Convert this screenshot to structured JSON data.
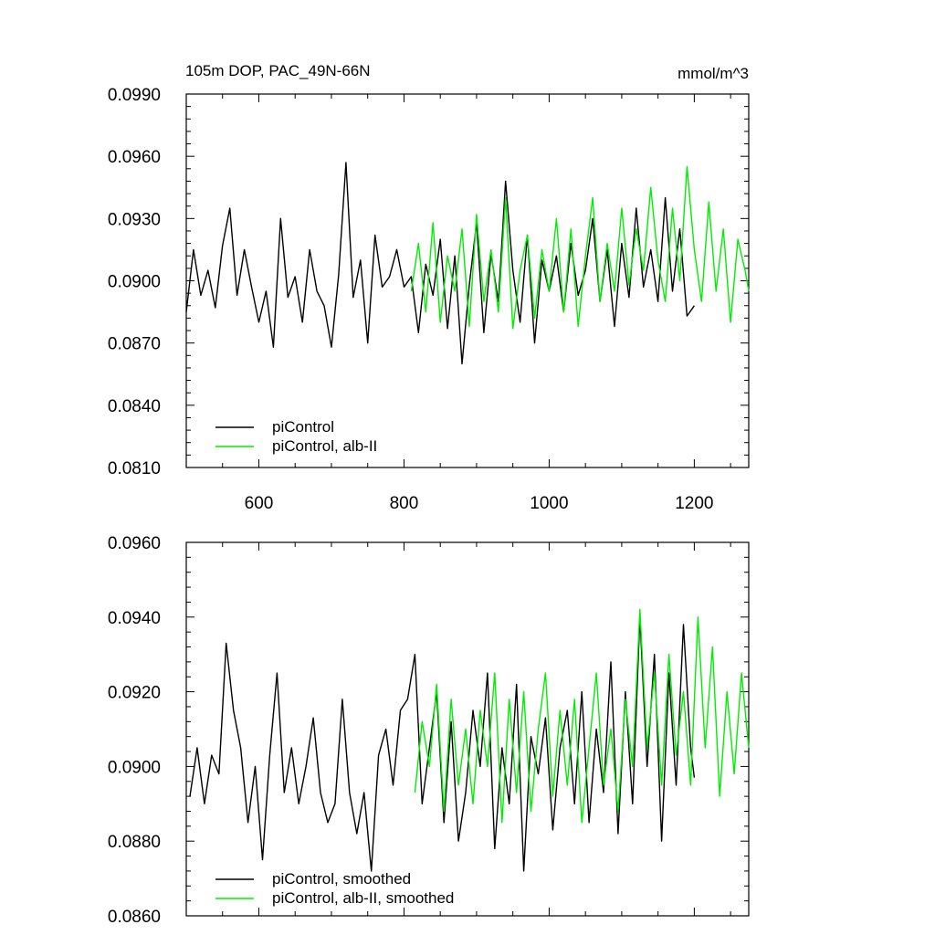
{
  "header": {
    "left": "105m DOP, PAC_49N-66N",
    "right": "mmol/m^3"
  },
  "colors": {
    "series_black": "#000000",
    "series_green": "#00ee00"
  },
  "chart_data": [
    {
      "type": "line",
      "title": "105m DOP, PAC_49N-66N",
      "units": "mmol/m^3",
      "xlim": [
        500,
        1275
      ],
      "ylim": [
        0.081,
        0.099
      ],
      "xticks": [
        600,
        800,
        1000,
        1200
      ],
      "xtick_labels": [
        "600",
        "800",
        "1000",
        "1200"
      ],
      "yticks": [
        0.081,
        0.084,
        0.087,
        0.09,
        0.093,
        0.096,
        0.099
      ],
      "ytick_labels": [
        "0.0810",
        "0.0840",
        "0.0870",
        "0.0900",
        "0.0930",
        "0.0960",
        "0.0990"
      ],
      "legend": {
        "position": "bottom-left",
        "entries": [
          "piControl",
          "piControl, alb-II"
        ]
      },
      "series": [
        {
          "name": "piControl",
          "color": "#000000",
          "x": [
            500,
            510,
            520,
            530,
            540,
            550,
            560,
            570,
            580,
            590,
            600,
            610,
            620,
            630,
            640,
            650,
            660,
            670,
            680,
            690,
            700,
            710,
            720,
            730,
            740,
            750,
            760,
            770,
            780,
            790,
            800,
            810,
            820,
            830,
            840,
            850,
            860,
            870,
            880,
            890,
            900,
            910,
            920,
            930,
            940,
            950,
            960,
            970,
            980,
            990,
            1000,
            1010,
            1020,
            1030,
            1040,
            1050,
            1060,
            1070,
            1080,
            1090,
            1100,
            1110,
            1120,
            1130,
            1140,
            1150,
            1160,
            1170,
            1180,
            1190,
            1200
          ],
          "y": [
            0.0885,
            0.0915,
            0.0893,
            0.0905,
            0.0887,
            0.0917,
            0.0935,
            0.0893,
            0.0915,
            0.0897,
            0.088,
            0.0895,
            0.0868,
            0.093,
            0.0892,
            0.0902,
            0.088,
            0.0915,
            0.0895,
            0.0888,
            0.0868,
            0.0903,
            0.0957,
            0.0892,
            0.091,
            0.087,
            0.0922,
            0.0897,
            0.0902,
            0.0915,
            0.0897,
            0.0902,
            0.0875,
            0.0908,
            0.0893,
            0.092,
            0.0877,
            0.0912,
            0.086,
            0.0898,
            0.0928,
            0.0875,
            0.0913,
            0.089,
            0.0948,
            0.0905,
            0.088,
            0.0922,
            0.087,
            0.091,
            0.0895,
            0.0912,
            0.0885,
            0.0918,
            0.0893,
            0.0905,
            0.093,
            0.089,
            0.0915,
            0.0878,
            0.0918,
            0.0892,
            0.0935,
            0.0897,
            0.0915,
            0.089,
            0.094,
            0.0895,
            0.0925,
            0.0883,
            0.0888
          ]
        },
        {
          "name": "piControl, alb-II",
          "color": "#00ee00",
          "x": [
            810,
            820,
            830,
            840,
            850,
            860,
            870,
            880,
            890,
            900,
            910,
            920,
            930,
            940,
            950,
            960,
            970,
            980,
            990,
            1000,
            1010,
            1020,
            1030,
            1040,
            1050,
            1060,
            1070,
            1080,
            1090,
            1100,
            1110,
            1120,
            1130,
            1140,
            1150,
            1160,
            1170,
            1180,
            1190,
            1200,
            1210,
            1220,
            1230,
            1240,
            1250,
            1260,
            1270,
            1275
          ],
          "y": [
            0.0895,
            0.0918,
            0.0885,
            0.0928,
            0.088,
            0.0912,
            0.0895,
            0.0925,
            0.0878,
            0.0932,
            0.089,
            0.0915,
            0.0885,
            0.094,
            0.0877,
            0.0905,
            0.0922,
            0.0882,
            0.0915,
            0.0895,
            0.093,
            0.0885,
            0.0925,
            0.0878,
            0.0912,
            0.094,
            0.089,
            0.0918,
            0.0895,
            0.0935,
            0.0898,
            0.0925,
            0.0905,
            0.0945,
            0.091,
            0.089,
            0.0935,
            0.09,
            0.0955,
            0.0915,
            0.089,
            0.0938,
            0.0895,
            0.0925,
            0.088,
            0.092,
            0.0905,
            0.0895
          ]
        }
      ]
    },
    {
      "type": "line",
      "xlim": [
        500,
        1275
      ],
      "ylim": [
        0.086,
        0.096
      ],
      "xticks": [
        600,
        800,
        1000,
        1200
      ],
      "yticks": [
        0.086,
        0.088,
        0.09,
        0.092,
        0.094,
        0.096
      ],
      "ytick_labels": [
        "0.0860",
        "0.0880",
        "0.0900",
        "0.0920",
        "0.0940",
        "0.0960"
      ],
      "legend": {
        "position": "bottom-left",
        "entries": [
          "piControl, smoothed",
          "piControl, alb-II, smoothed"
        ]
      },
      "series": [
        {
          "name": "piControl, smoothed",
          "color": "#000000",
          "x": [
            505,
            515,
            525,
            535,
            545,
            555,
            565,
            575,
            585,
            595,
            605,
            615,
            625,
            635,
            645,
            655,
            665,
            675,
            685,
            695,
            705,
            715,
            725,
            735,
            745,
            755,
            765,
            775,
            785,
            795,
            805,
            815,
            825,
            835,
            845,
            855,
            865,
            875,
            885,
            895,
            905,
            915,
            925,
            935,
            945,
            955,
            965,
            975,
            985,
            995,
            1005,
            1015,
            1025,
            1035,
            1045,
            1055,
            1065,
            1075,
            1085,
            1095,
            1105,
            1115,
            1125,
            1135,
            1145,
            1155,
            1165,
            1175,
            1185,
            1195,
            1200
          ],
          "y": [
            0.0892,
            0.0905,
            0.089,
            0.0903,
            0.0898,
            0.0933,
            0.0915,
            0.0905,
            0.0885,
            0.09,
            0.0875,
            0.0903,
            0.0925,
            0.0893,
            0.0905,
            0.089,
            0.09,
            0.0913,
            0.0893,
            0.0885,
            0.089,
            0.0918,
            0.0893,
            0.0882,
            0.0893,
            0.0872,
            0.0903,
            0.091,
            0.0895,
            0.0915,
            0.0918,
            0.093,
            0.089,
            0.0905,
            0.092,
            0.0885,
            0.0912,
            0.088,
            0.0893,
            0.0915,
            0.09,
            0.0925,
            0.0878,
            0.0905,
            0.089,
            0.0922,
            0.0872,
            0.0908,
            0.0898,
            0.0913,
            0.0883,
            0.0905,
            0.0915,
            0.089,
            0.092,
            0.0885,
            0.091,
            0.0893,
            0.0928,
            0.0882,
            0.092,
            0.089,
            0.094,
            0.09,
            0.093,
            0.088,
            0.0925,
            0.0895,
            0.0938,
            0.0905,
            0.0897
          ]
        },
        {
          "name": "piControl, alb-II, smoothed",
          "color": "#00ee00",
          "x": [
            815,
            825,
            835,
            845,
            855,
            865,
            875,
            885,
            895,
            905,
            915,
            925,
            935,
            945,
            955,
            965,
            975,
            985,
            995,
            1005,
            1015,
            1025,
            1035,
            1045,
            1055,
            1065,
            1075,
            1085,
            1095,
            1105,
            1115,
            1125,
            1135,
            1145,
            1155,
            1165,
            1175,
            1185,
            1195,
            1205,
            1215,
            1225,
            1235,
            1245,
            1255,
            1265,
            1275
          ],
          "y": [
            0.0893,
            0.0912,
            0.09,
            0.0922,
            0.0888,
            0.0918,
            0.0895,
            0.091,
            0.089,
            0.0915,
            0.09,
            0.0925,
            0.0885,
            0.0918,
            0.0893,
            0.092,
            0.0888,
            0.091,
            0.0925,
            0.0892,
            0.0915,
            0.0895,
            0.0918,
            0.0885,
            0.0905,
            0.0925,
            0.0895,
            0.091,
            0.0888,
            0.0918,
            0.09,
            0.0942,
            0.0905,
            0.0925,
            0.0895,
            0.093,
            0.0903,
            0.092,
            0.0895,
            0.094,
            0.0905,
            0.0932,
            0.0892,
            0.092,
            0.0898,
            0.0925,
            0.0905
          ]
        }
      ]
    }
  ]
}
